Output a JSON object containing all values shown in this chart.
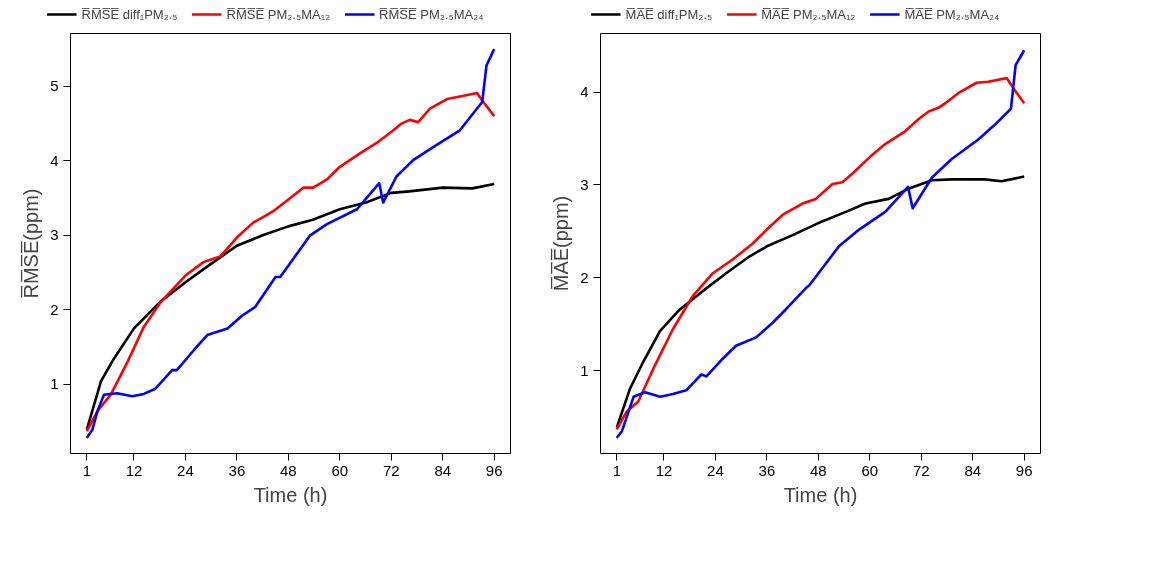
{
  "chart_data": [
    {
      "type": "line",
      "xlabel": "Time (h)",
      "ylabel": "R̅M̅S̅E̅(ppm)",
      "xlim": [
        -2.8,
        99.8
      ],
      "ylim": [
        0.07,
        5.71
      ],
      "xticks": [
        1,
        12,
        24,
        36,
        48,
        60,
        72,
        84,
        96
      ],
      "yticks": [
        1,
        2,
        3,
        4,
        5
      ],
      "grid": false,
      "legend": "top",
      "marker": "none",
      "line_style": "solid",
      "series": [
        {
          "name": "R̅M̅S̅E̅ diff₁PM₂.₅",
          "color": "#000000",
          "x": [
            1,
            4.3,
            7.4,
            12,
            18,
            24,
            29.8,
            36,
            42,
            48,
            53.7,
            60,
            66.1,
            72,
            76.2,
            84,
            90.9,
            96
          ],
          "values": [
            0.39,
            1.04,
            1.35,
            1.75,
            2.1,
            2.37,
            2.61,
            2.86,
            3.0,
            3.12,
            3.21,
            3.35,
            3.44,
            3.57,
            3.59,
            3.64,
            3.63,
            3.69
          ]
        },
        {
          "name": "R̅M̅S̅E̅ PM₂.₅MA₁₂",
          "color": "#ff0000",
          "x": [
            1,
            3.5,
            6.6,
            10.5,
            14.3,
            18.2,
            24,
            28.2,
            32.2,
            36,
            39.8,
            44.4,
            48,
            51.5,
            53.8,
            57,
            60,
            64.7,
            68.6,
            72.5,
            74.4,
            76.3,
            78.3,
            81,
            85,
            88.6,
            92,
            93.2,
            96
          ],
          "values": [
            0.37,
            0.64,
            0.86,
            1.3,
            1.77,
            2.1,
            2.46,
            2.64,
            2.72,
            2.97,
            3.17,
            3.32,
            3.48,
            3.64,
            3.64,
            3.75,
            3.92,
            4.1,
            4.24,
            4.41,
            4.5,
            4.55,
            4.52,
            4.7,
            4.83,
            4.87,
            4.91,
            4.81,
            4.6
          ]
        },
        {
          "name": "R̅M̅S̅E̅ PM₂.₅MA₂₄",
          "color": "#0000ff",
          "x": [
            1,
            2.3,
            3.5,
            5,
            8.1,
            11.6,
            14.3,
            17,
            20.9,
            22,
            26,
            29.1,
            33.8,
            37.2,
            40.3,
            45,
            46.1,
            53.1,
            57,
            64,
            69.2,
            70.1,
            73.2,
            77.1,
            82.5,
            88,
            93.2,
            94.2,
            96
          ],
          "values": [
            0.28,
            0.39,
            0.64,
            0.86,
            0.88,
            0.84,
            0.87,
            0.94,
            1.19,
            1.19,
            1.46,
            1.66,
            1.75,
            1.92,
            2.04,
            2.44,
            2.44,
            3.0,
            3.15,
            3.35,
            3.7,
            3.44,
            3.79,
            4.01,
            4.21,
            4.41,
            4.79,
            5.28,
            5.5
          ]
        }
      ]
    },
    {
      "type": "line",
      "xlabel": "Time (h)",
      "ylabel": "M̅A̅E̅(ppm)",
      "xlim": [
        -2.8,
        99.8
      ],
      "ylim": [
        0.11,
        4.63
      ],
      "xticks": [
        1,
        12,
        24,
        36,
        48,
        60,
        72,
        84,
        96
      ],
      "yticks": [
        1,
        2,
        3,
        4
      ],
      "grid": false,
      "legend": "top",
      "marker": "none",
      "line_style": "solid",
      "series": [
        {
          "name": "M̅A̅E̅ diff₁PM₂.₅",
          "color": "#000000",
          "x": [
            1,
            4.1,
            7.2,
            11.1,
            15.7,
            21.1,
            26.5,
            31.9,
            36,
            42,
            48,
            54.4,
            59,
            64.4,
            69,
            74.5,
            79.1,
            86.8,
            90.7,
            96
          ],
          "values": [
            0.39,
            0.81,
            1.1,
            1.43,
            1.66,
            1.86,
            2.05,
            2.23,
            2.34,
            2.46,
            2.59,
            2.71,
            2.8,
            2.85,
            2.96,
            3.05,
            3.06,
            3.06,
            3.04,
            3.09
          ]
        },
        {
          "name": "M̅A̅E̅ PM₂.₅MA₁₂",
          "color": "#ff0000",
          "x": [
            1,
            3.3,
            6,
            9.5,
            14.1,
            18.8,
            23.4,
            28.1,
            32.7,
            36,
            39.7,
            44.3,
            47.4,
            51.3,
            53.6,
            55.9,
            60,
            63.6,
            68.3,
            71.4,
            73.7,
            76,
            77.6,
            80.7,
            84.9,
            87.6,
            91.9,
            93.8,
            96
          ],
          "values": [
            0.37,
            0.56,
            0.67,
            1.02,
            1.45,
            1.81,
            2.05,
            2.2,
            2.37,
            2.52,
            2.68,
            2.8,
            2.85,
            3.01,
            3.03,
            3.12,
            3.3,
            3.44,
            3.58,
            3.71,
            3.79,
            3.83,
            3.88,
            3.99,
            4.1,
            4.11,
            4.15,
            4.02,
            3.88
          ]
        },
        {
          "name": "M̅A̅E̅ PM₂.₅MA₂₄",
          "color": "#0000ff",
          "x": [
            1,
            2.2,
            4.9,
            7.6,
            11.1,
            14.1,
            17.2,
            20.7,
            21.9,
            25.7,
            28.8,
            33.5,
            37.4,
            40.4,
            45.1,
            45.9,
            52.8,
            57.5,
            63.6,
            68.9,
            70,
            74.5,
            79.1,
            85.3,
            89.2,
            92.9,
            94,
            96
          ],
          "values": [
            0.28,
            0.35,
            0.72,
            0.77,
            0.72,
            0.75,
            0.79,
            0.96,
            0.94,
            1.13,
            1.27,
            1.36,
            1.52,
            1.66,
            1.89,
            1.92,
            2.34,
            2.52,
            2.71,
            2.98,
            2.75,
            3.08,
            3.28,
            3.49,
            3.65,
            3.82,
            4.29,
            4.45
          ]
        }
      ]
    }
  ]
}
